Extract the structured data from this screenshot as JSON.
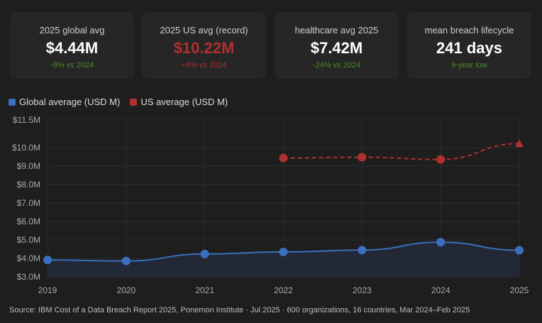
{
  "cards": [
    {
      "label": "2025 global avg",
      "value": "$4.44M",
      "delta": "-9% vs 2024",
      "value_color": "#ffffff",
      "delta_color": "#4a8a2a"
    },
    {
      "label": "2025 US avg (record)",
      "value": "$10.22M",
      "delta": "+9% vs 2024",
      "value_color": "#b03030",
      "delta_color": "#b03030"
    },
    {
      "label": "healthcare avg 2025",
      "value": "$7.42M",
      "delta": "-24% vs 2024",
      "value_color": "#ffffff",
      "delta_color": "#4a8a2a"
    },
    {
      "label": "mean breach lifecycle",
      "value": "241 days",
      "delta": "9-year low",
      "value_color": "#ffffff",
      "delta_color": "#4a8a2a"
    }
  ],
  "chart_data": {
    "type": "line",
    "x": [
      2019,
      2020,
      2021,
      2022,
      2023,
      2024,
      2025
    ],
    "series": [
      {
        "name": "Global average (USD M)",
        "color": "#3a6fbf",
        "style": "solid",
        "area": true,
        "values": [
          3.92,
          3.86,
          4.24,
          4.35,
          4.45,
          4.88,
          4.44
        ]
      },
      {
        "name": "US average (USD M)",
        "color": "#b03030",
        "style": "dashed",
        "values": [
          null,
          null,
          null,
          9.44,
          9.48,
          9.36,
          10.22
        ]
      }
    ],
    "ylim": [
      3.0,
      11.5
    ],
    "y_ticks": [
      3,
      4,
      5,
      6,
      7,
      8,
      9,
      10,
      11.5
    ],
    "y_tick_labels": [
      "$3.0M",
      "$4.0M",
      "$5.0M",
      "$6.0M",
      "$7.0M",
      "$8.0M",
      "$9.0M",
      "$10.0M",
      "$11.5M"
    ],
    "x_tick_labels": [
      "2019",
      "2020",
      "2021",
      "2022",
      "2023",
      "2024",
      "2025"
    ],
    "grid": true,
    "legend": "top-left"
  },
  "source": "Source: IBM Cost of a Data Breach Report 2025, Ponemon Institute · Jul 2025 · 600 organizations, 16 countries, Mar 2024–Feb 2025"
}
